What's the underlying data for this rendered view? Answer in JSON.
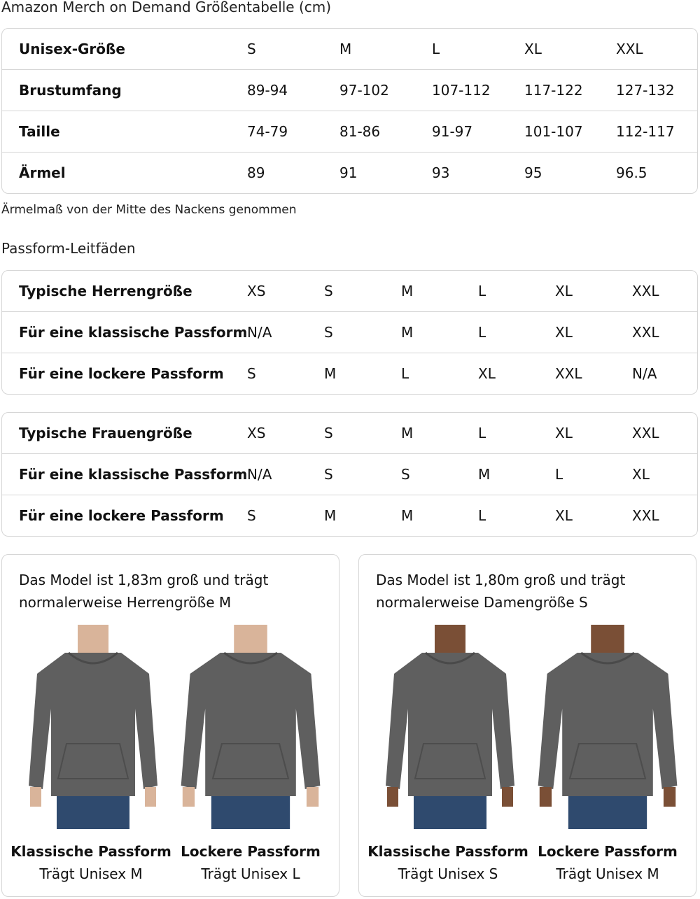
{
  "title": "Amazon Merch on Demand Größentabelle (cm)",
  "size_table": {
    "rows": [
      {
        "label": "Unisex-Größe",
        "values": [
          "S",
          "M",
          "L",
          "XL",
          "XXL"
        ]
      },
      {
        "label": "Brustumfang",
        "values": [
          "89-94",
          "97-102",
          "107-112",
          "117-122",
          "127-132"
        ]
      },
      {
        "label": "Taille",
        "values": [
          "74-79",
          "81-86",
          "91-97",
          "101-107",
          "112-117"
        ]
      },
      {
        "label": "Ärmel",
        "values": [
          "89",
          "91",
          "93",
          "95",
          "96.5"
        ]
      }
    ]
  },
  "note": "Ärmelmaß von der Mitte des Nackens genommen",
  "fit_title": "Passform-Leitfäden",
  "men_table": {
    "rows": [
      {
        "label": "Typische Herrengröße",
        "values": [
          "XS",
          "S",
          "M",
          "L",
          "XL",
          "XXL"
        ]
      },
      {
        "label": "Für eine klassische Passform",
        "values": [
          "N/A",
          "S",
          "M",
          "L",
          "XL",
          "XXL"
        ]
      },
      {
        "label": "Für eine lockere Passform",
        "values": [
          "S",
          "M",
          "L",
          "XL",
          "XXL",
          "N/A"
        ]
      }
    ]
  },
  "women_table": {
    "rows": [
      {
        "label": "Typische Frauengröße",
        "values": [
          "XS",
          "S",
          "M",
          "L",
          "XL",
          "XXL"
        ]
      },
      {
        "label": "Für eine klassische Passform",
        "values": [
          "N/A",
          "S",
          "S",
          "M",
          "L",
          "XL"
        ]
      },
      {
        "label": "Für eine lockere Passform",
        "values": [
          "S",
          "M",
          "M",
          "L",
          "XL",
          "XXL"
        ]
      }
    ]
  },
  "cards": [
    {
      "text": "Das Model ist 1,83m groß und trägt normalerweise Herrengröße M",
      "figures": [
        {
          "fit": "Klassische Passform",
          "wears": "Trägt Unisex M"
        },
        {
          "fit": "Lockere Passform",
          "wears": "Trägt Unisex L"
        }
      ]
    },
    {
      "text": "Das Model ist 1,80m groß und trägt normalerweise Damengröße S",
      "figures": [
        {
          "fit": "Klassische Passform",
          "wears": "Trägt Unisex S"
        },
        {
          "fit": "Lockere Passform",
          "wears": "Trägt Unisex M"
        }
      ]
    }
  ],
  "colors": {
    "hoodie": "#5f5f5f",
    "jeans": "#2f4a6e",
    "skin_light": "#d9b49a",
    "skin_dark": "#7a4f36",
    "border": "#d5d5d5"
  }
}
